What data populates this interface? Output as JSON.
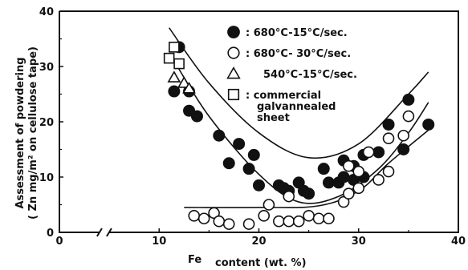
{
  "chart_data": {
    "type": "scatter",
    "title": "",
    "xlabel_prefix": "Fe",
    "xlabel": "content (wt. %)",
    "ylabel_line1": "Assessment of powdering",
    "ylabel_line2": "( Zn mg/m² on cellulose tape)",
    "xlim": [
      0,
      40
    ],
    "ylim": [
      0,
      40
    ],
    "x_ticks": [
      "0",
      "10",
      "20",
      "30",
      "40"
    ],
    "y_ticks": [
      "0",
      "10",
      "20",
      "30",
      "40"
    ],
    "axis_break_x": 4.5,
    "grid": false,
    "legend_position": "top-center",
    "series": [
      {
        "name": ": 680°C-15°C/sec.",
        "marker": "filled-circle",
        "points": [
          [
            12,
            33.5
          ],
          [
            11.5,
            25.5
          ],
          [
            13,
            25.5
          ],
          [
            13,
            22
          ],
          [
            13.8,
            21
          ],
          [
            16,
            17.5
          ],
          [
            18,
            16
          ],
          [
            17,
            12.5
          ],
          [
            19.5,
            14
          ],
          [
            19,
            11.5
          ],
          [
            20,
            8.5
          ],
          [
            22,
            8.5
          ],
          [
            22.5,
            8
          ],
          [
            24,
            9
          ],
          [
            23,
            7.5
          ],
          [
            24.5,
            7.5
          ],
          [
            25,
            7
          ],
          [
            26.5,
            11.5
          ],
          [
            27,
            9
          ],
          [
            28,
            9
          ],
          [
            28.5,
            10
          ],
          [
            28.5,
            13
          ],
          [
            29.5,
            12
          ],
          [
            29.5,
            9.5
          ],
          [
            30.5,
            10
          ],
          [
            30.5,
            14
          ],
          [
            32,
            14.5
          ],
          [
            33,
            19.5
          ],
          [
            34.5,
            15
          ],
          [
            35,
            24
          ],
          [
            37,
            19.5
          ]
        ]
      },
      {
        "name": ": 680°C- 30°C/sec.",
        "marker": "open-circle",
        "points": [
          [
            13.5,
            3
          ],
          [
            14.5,
            2.5
          ],
          [
            15.5,
            3.5
          ],
          [
            16,
            2
          ],
          [
            17,
            1.5
          ],
          [
            19,
            1.5
          ],
          [
            20.5,
            3
          ],
          [
            21,
            5
          ],
          [
            22,
            2
          ],
          [
            23,
            6.5
          ],
          [
            23,
            2
          ],
          [
            24,
            2
          ],
          [
            25,
            3
          ],
          [
            26,
            2.5
          ],
          [
            27,
            2.5
          ],
          [
            28.5,
            5.5
          ],
          [
            29,
            7
          ],
          [
            29,
            12
          ],
          [
            30,
            8
          ],
          [
            30,
            11
          ],
          [
            31,
            14.5
          ],
          [
            32,
            9.5
          ],
          [
            33,
            11
          ],
          [
            33,
            17
          ],
          [
            34.5,
            17.5
          ],
          [
            35,
            21
          ]
        ]
      },
      {
        "name": "540°C-15°C/sec.",
        "marker": "open-triangle",
        "points": [
          [
            11.5,
            28
          ],
          [
            12.5,
            27
          ],
          [
            13,
            26
          ]
        ]
      },
      {
        "name": "commercial galvannealed sheet",
        "legend_lines": [
          ":   commercial",
          "galvannealed",
          "sheet"
        ],
        "marker": "open-square",
        "points": [
          [
            11,
            31.5
          ],
          [
            11.5,
            33.5
          ],
          [
            12,
            30.5
          ]
        ]
      }
    ],
    "band_curves": [
      {
        "name": "upper",
        "points": [
          [
            11,
            37
          ],
          [
            15,
            27
          ],
          [
            20,
            18
          ],
          [
            25,
            13.5
          ],
          [
            30,
            16
          ],
          [
            35,
            25
          ],
          [
            37,
            29
          ]
        ]
      },
      {
        "name": "middle",
        "points": [
          [
            11.5,
            31
          ],
          [
            15,
            21
          ],
          [
            20,
            10.5
          ],
          [
            24,
            5.5
          ],
          [
            28,
            6.5
          ],
          [
            32,
            11.5
          ],
          [
            35,
            18
          ],
          [
            37,
            23.5
          ]
        ]
      },
      {
        "name": "lower",
        "points": [
          [
            12.5,
            4.5
          ],
          [
            20,
            4.5
          ],
          [
            26,
            4.8
          ],
          [
            30,
            7.5
          ],
          [
            33,
            12.5
          ],
          [
            37,
            18.5
          ]
        ]
      }
    ]
  }
}
